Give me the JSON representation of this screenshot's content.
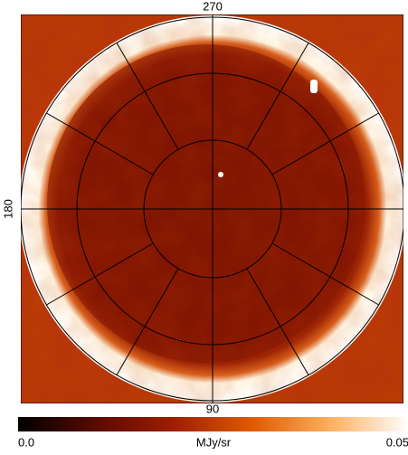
{
  "chart_data": {
    "type": "heatmap",
    "axis_labels": {
      "top": "270",
      "left": "180",
      "bottom": "90"
    },
    "colorbar": {
      "label": "MJy/sr",
      "lim": [
        0,
        0.05
      ],
      "ticks": [
        {
          "value": 0,
          "label": "0.0"
        },
        0.05
      ],
      "colors": [
        "#000000",
        "#5a0a00",
        "#a01e00",
        "#e05a00",
        "#ffb060",
        "#ffffff"
      ]
    }
  }
}
